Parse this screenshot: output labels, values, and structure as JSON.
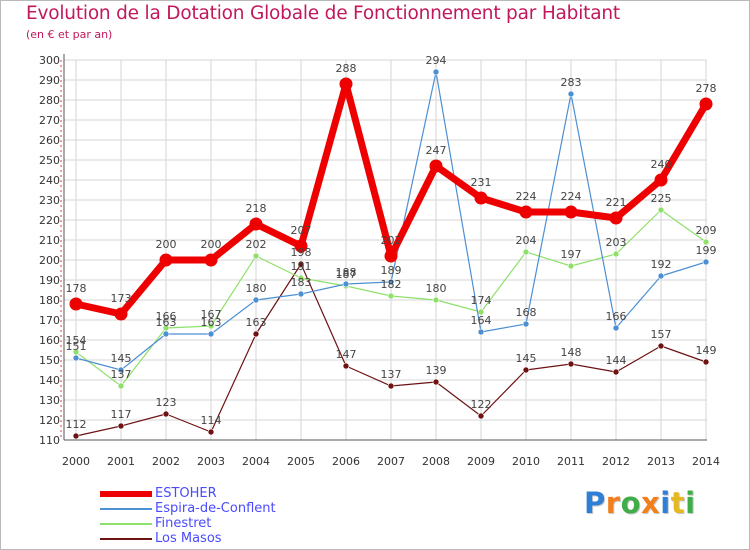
{
  "chart_data": {
    "type": "line",
    "title": "Evolution de la Dotation Globale de Fonctionnement par Habitant",
    "subtitle": "(en € et par an)",
    "xlabel": "",
    "ylabel": "",
    "ylim": [
      110,
      300
    ],
    "ytick_step": 10,
    "grid": true,
    "legend_position": "bottom-left",
    "categories": [
      "2000",
      "2001",
      "2002",
      "2003",
      "2004",
      "2005",
      "2006",
      "2007",
      "2008",
      "2009",
      "2010",
      "2011",
      "2012",
      "2013",
      "2014"
    ],
    "series": [
      {
        "name": "ESTOHER",
        "color": "#ee0000",
        "values": [
          178,
          173,
          200,
          200,
          218,
          207,
          288,
          202,
          247,
          231,
          224,
          224,
          221,
          240,
          278
        ]
      },
      {
        "name": "Espira-de-Conflent",
        "color": "#4d8fd3",
        "values": [
          151,
          145,
          163,
          163,
          180,
          183,
          188,
          189,
          294,
          164,
          168,
          283,
          166,
          192,
          199
        ]
      },
      {
        "name": "Finestret",
        "color": "#8fe06a",
        "values": [
          154,
          137,
          166,
          167,
          202,
          191,
          187,
          182,
          180,
          174,
          204,
          197,
          203,
          225,
          209
        ]
      },
      {
        "name": "Los Masos",
        "color": "#6e1212",
        "values": [
          112,
          117,
          123,
          114,
          163,
          198,
          147,
          137,
          139,
          122,
          145,
          148,
          144,
          157,
          149
        ]
      }
    ]
  },
  "brand": {
    "letters": [
      "P",
      "r",
      "o",
      "x",
      "i",
      "t",
      "i"
    ],
    "colors": [
      "#2f7fd6",
      "#f07f1c",
      "#3fae49",
      "#f07f1c",
      "#2f7fd6",
      "#e6b820",
      "#3fae49"
    ]
  }
}
